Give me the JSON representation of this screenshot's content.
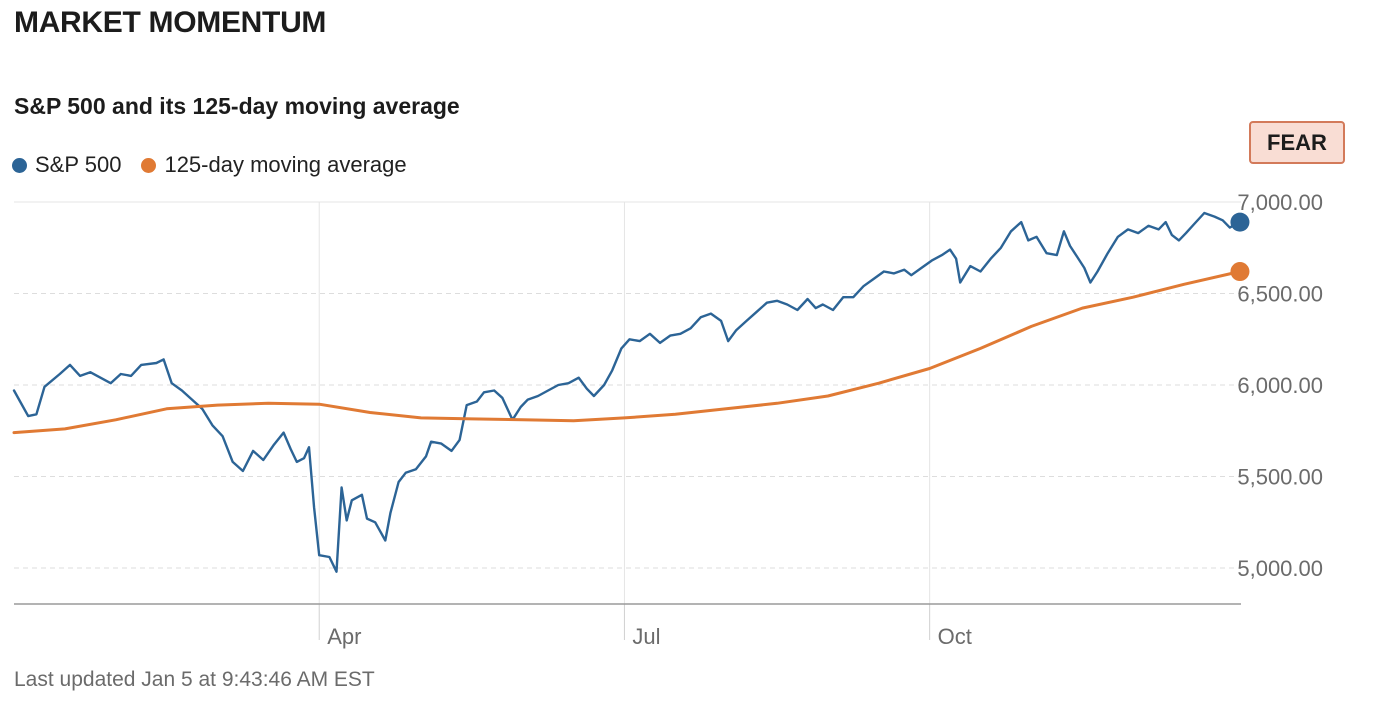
{
  "header": {
    "title": "MARKET MOMENTUM",
    "subtitle": "S&P 500 and its 125-day moving average"
  },
  "badge": {
    "label": "FEAR",
    "color": "#d37a5a"
  },
  "footer": {
    "updated": "Last updated Jan 5 at 9:43:46 AM EST"
  },
  "chart_data": {
    "type": "line",
    "title": "S&P 500 and its 125-day moving average",
    "xlabel": "",
    "ylabel": "",
    "ylim": [
      4800,
      7000
    ],
    "yticks": [
      5000,
      5500,
      6000,
      6500,
      7000
    ],
    "ytick_labels": [
      "5,000.00",
      "5,500.00",
      "6,000.00",
      "6,500.00",
      "7,000.00"
    ],
    "xlim": [
      0,
      12
    ],
    "xticks": [
      3,
      6,
      9
    ],
    "xtick_labels": [
      "Apr",
      "Jul",
      "Oct"
    ],
    "legend_position": "top-left",
    "series": [
      {
        "name": "S&P 500",
        "color": "#2c6496",
        "points": [
          [
            0.0,
            5970
          ],
          [
            0.06,
            5910
          ],
          [
            0.14,
            5830
          ],
          [
            0.22,
            5840
          ],
          [
            0.3,
            5990
          ],
          [
            0.45,
            6060
          ],
          [
            0.55,
            6110
          ],
          [
            0.65,
            6050
          ],
          [
            0.75,
            6070
          ],
          [
            0.85,
            6040
          ],
          [
            0.95,
            6010
          ],
          [
            1.05,
            6060
          ],
          [
            1.15,
            6050
          ],
          [
            1.25,
            6110
          ],
          [
            1.4,
            6120
          ],
          [
            1.47,
            6140
          ],
          [
            1.55,
            6010
          ],
          [
            1.65,
            5970
          ],
          [
            1.75,
            5920
          ],
          [
            1.85,
            5870
          ],
          [
            1.95,
            5780
          ],
          [
            2.05,
            5720
          ],
          [
            2.15,
            5580
          ],
          [
            2.25,
            5530
          ],
          [
            2.35,
            5640
          ],
          [
            2.45,
            5590
          ],
          [
            2.55,
            5670
          ],
          [
            2.65,
            5740
          ],
          [
            2.72,
            5650
          ],
          [
            2.78,
            5580
          ],
          [
            2.85,
            5600
          ],
          [
            2.9,
            5660
          ],
          [
            2.95,
            5330
          ],
          [
            3.0,
            5070
          ],
          [
            3.1,
            5060
          ],
          [
            3.17,
            4980
          ],
          [
            3.22,
            5440
          ],
          [
            3.27,
            5260
          ],
          [
            3.32,
            5370
          ],
          [
            3.42,
            5400
          ],
          [
            3.47,
            5270
          ],
          [
            3.55,
            5250
          ],
          [
            3.65,
            5150
          ],
          [
            3.7,
            5300
          ],
          [
            3.78,
            5470
          ],
          [
            3.85,
            5520
          ],
          [
            3.95,
            5540
          ],
          [
            4.05,
            5610
          ],
          [
            4.1,
            5690
          ],
          [
            4.2,
            5680
          ],
          [
            4.3,
            5640
          ],
          [
            4.38,
            5700
          ],
          [
            4.45,
            5890
          ],
          [
            4.55,
            5910
          ],
          [
            4.62,
            5960
          ],
          [
            4.72,
            5970
          ],
          [
            4.8,
            5930
          ],
          [
            4.9,
            5810
          ],
          [
            4.98,
            5880
          ],
          [
            5.05,
            5920
          ],
          [
            5.15,
            5940
          ],
          [
            5.25,
            5970
          ],
          [
            5.35,
            6000
          ],
          [
            5.45,
            6010
          ],
          [
            5.55,
            6040
          ],
          [
            5.63,
            5980
          ],
          [
            5.7,
            5940
          ],
          [
            5.8,
            6000
          ],
          [
            5.88,
            6080
          ],
          [
            5.97,
            6200
          ],
          [
            6.05,
            6250
          ],
          [
            6.15,
            6240
          ],
          [
            6.25,
            6280
          ],
          [
            6.35,
            6230
          ],
          [
            6.45,
            6270
          ],
          [
            6.55,
            6280
          ],
          [
            6.65,
            6310
          ],
          [
            6.75,
            6370
          ],
          [
            6.85,
            6390
          ],
          [
            6.95,
            6350
          ],
          [
            7.02,
            6240
          ],
          [
            7.1,
            6300
          ],
          [
            7.2,
            6350
          ],
          [
            7.3,
            6400
          ],
          [
            7.4,
            6450
          ],
          [
            7.5,
            6460
          ],
          [
            7.6,
            6440
          ],
          [
            7.7,
            6410
          ],
          [
            7.8,
            6470
          ],
          [
            7.88,
            6420
          ],
          [
            7.95,
            6440
          ],
          [
            8.05,
            6410
          ],
          [
            8.15,
            6480
          ],
          [
            8.25,
            6480
          ],
          [
            8.35,
            6540
          ],
          [
            8.45,
            6580
          ],
          [
            8.55,
            6620
          ],
          [
            8.65,
            6610
          ],
          [
            8.75,
            6630
          ],
          [
            8.82,
            6600
          ],
          [
            8.92,
            6640
          ],
          [
            9.02,
            6680
          ],
          [
            9.12,
            6710
          ],
          [
            9.2,
            6740
          ],
          [
            9.26,
            6690
          ],
          [
            9.3,
            6560
          ],
          [
            9.4,
            6650
          ],
          [
            9.5,
            6620
          ],
          [
            9.6,
            6690
          ],
          [
            9.7,
            6750
          ],
          [
            9.8,
            6840
          ],
          [
            9.9,
            6890
          ],
          [
            9.97,
            6790
          ],
          [
            10.05,
            6810
          ],
          [
            10.15,
            6720
          ],
          [
            10.25,
            6710
          ],
          [
            10.32,
            6840
          ],
          [
            10.38,
            6760
          ],
          [
            10.45,
            6700
          ],
          [
            10.52,
            6640
          ],
          [
            10.58,
            6560
          ],
          [
            10.65,
            6620
          ],
          [
            10.75,
            6720
          ],
          [
            10.85,
            6810
          ],
          [
            10.95,
            6850
          ],
          [
            11.05,
            6830
          ],
          [
            11.15,
            6870
          ],
          [
            11.25,
            6850
          ],
          [
            11.32,
            6890
          ],
          [
            11.38,
            6820
          ],
          [
            11.45,
            6790
          ],
          [
            11.52,
            6830
          ],
          [
            11.6,
            6880
          ],
          [
            11.7,
            6940
          ],
          [
            11.8,
            6920
          ],
          [
            11.88,
            6900
          ],
          [
            11.95,
            6860
          ],
          [
            12.05,
            6890
          ]
        ]
      },
      {
        "name": "125-day moving average",
        "color": "#e07a34",
        "points": [
          [
            0.0,
            5740
          ],
          [
            0.5,
            5760
          ],
          [
            1.0,
            5810
          ],
          [
            1.5,
            5870
          ],
          [
            2.0,
            5890
          ],
          [
            2.5,
            5900
          ],
          [
            3.0,
            5895
          ],
          [
            3.5,
            5850
          ],
          [
            4.0,
            5820
          ],
          [
            4.5,
            5815
          ],
          [
            5.0,
            5810
          ],
          [
            5.5,
            5805
          ],
          [
            6.0,
            5820
          ],
          [
            6.5,
            5840
          ],
          [
            7.0,
            5870
          ],
          [
            7.5,
            5900
          ],
          [
            8.0,
            5940
          ],
          [
            8.5,
            6010
          ],
          [
            9.0,
            6090
          ],
          [
            9.5,
            6200
          ],
          [
            10.0,
            6320
          ],
          [
            10.5,
            6420
          ],
          [
            11.0,
            6480
          ],
          [
            11.5,
            6550
          ],
          [
            12.05,
            6620
          ]
        ]
      }
    ]
  }
}
